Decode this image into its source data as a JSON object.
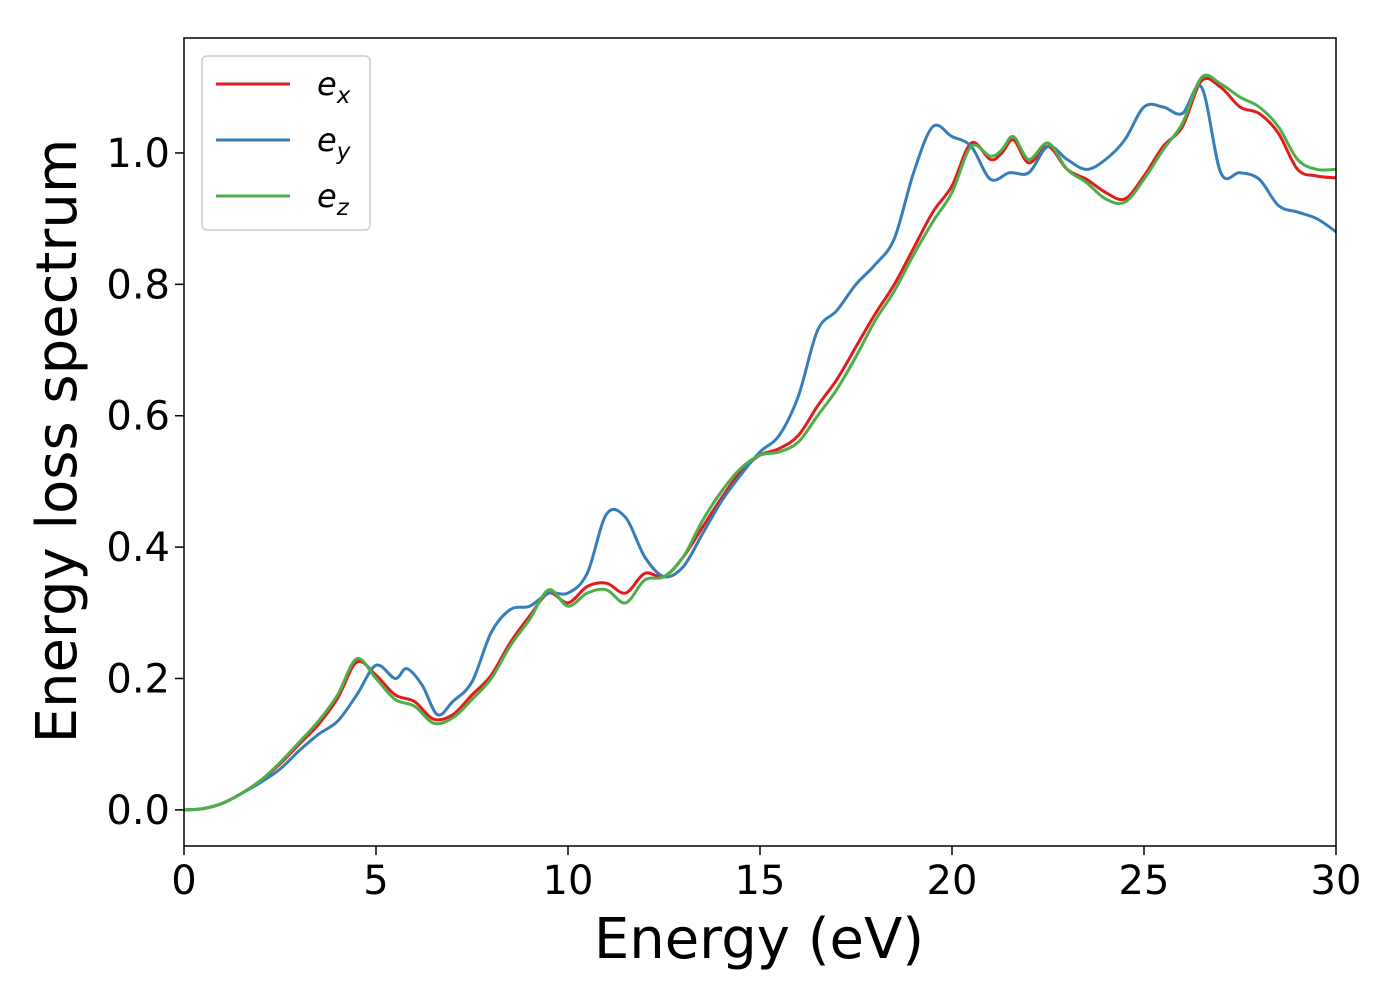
{
  "chart_data": {
    "type": "line",
    "xlabel": "Energy (eV)",
    "ylabel": "Energy loss spectrum",
    "xlim": [
      0,
      30
    ],
    "ylim": [
      -0.055,
      1.175
    ],
    "xticks": [
      0,
      5,
      10,
      15,
      20,
      25,
      30
    ],
    "yticks": [
      0.0,
      0.2,
      0.4,
      0.6,
      0.8,
      1.0
    ],
    "xtick_labels": [
      "0",
      "5",
      "10",
      "15",
      "20",
      "25",
      "30"
    ],
    "ytick_labels": [
      "0.0",
      "0.2",
      "0.4",
      "0.6",
      "0.8",
      "1.0"
    ],
    "grid": false,
    "legend_position": "top-left",
    "series": [
      {
        "name": "e",
        "subscript": "x",
        "color": "#e41a1c",
        "points": [
          [
            0,
            0.0
          ],
          [
            0.5,
            0.002
          ],
          [
            1.0,
            0.01
          ],
          [
            1.5,
            0.025
          ],
          [
            2.0,
            0.045
          ],
          [
            2.5,
            0.07
          ],
          [
            3.0,
            0.1
          ],
          [
            3.5,
            0.13
          ],
          [
            4.0,
            0.17
          ],
          [
            4.5,
            0.225
          ],
          [
            5.0,
            0.205
          ],
          [
            5.5,
            0.175
          ],
          [
            6.0,
            0.165
          ],
          [
            6.5,
            0.138
          ],
          [
            7.0,
            0.145
          ],
          [
            7.5,
            0.175
          ],
          [
            8.0,
            0.205
          ],
          [
            8.5,
            0.255
          ],
          [
            9.0,
            0.295
          ],
          [
            9.5,
            0.33
          ],
          [
            10.0,
            0.315
          ],
          [
            10.5,
            0.34
          ],
          [
            11.0,
            0.345
          ],
          [
            11.5,
            0.33
          ],
          [
            12.0,
            0.36
          ],
          [
            12.5,
            0.355
          ],
          [
            13.0,
            0.385
          ],
          [
            13.5,
            0.43
          ],
          [
            14.0,
            0.475
          ],
          [
            14.5,
            0.515
          ],
          [
            15.0,
            0.54
          ],
          [
            15.5,
            0.55
          ],
          [
            16.0,
            0.57
          ],
          [
            16.5,
            0.615
          ],
          [
            17.0,
            0.655
          ],
          [
            17.5,
            0.705
          ],
          [
            18.0,
            0.755
          ],
          [
            18.5,
            0.8
          ],
          [
            19.0,
            0.855
          ],
          [
            19.5,
            0.91
          ],
          [
            20.0,
            0.95
          ],
          [
            20.5,
            1.015
          ],
          [
            21.0,
            0.99
          ],
          [
            21.3,
            1.0
          ],
          [
            21.6,
            1.02
          ],
          [
            22.0,
            0.985
          ],
          [
            22.5,
            1.01
          ],
          [
            23.0,
            0.975
          ],
          [
            23.5,
            0.96
          ],
          [
            24.0,
            0.94
          ],
          [
            24.5,
            0.93
          ],
          [
            25.0,
            0.965
          ],
          [
            25.5,
            1.01
          ],
          [
            26.0,
            1.04
          ],
          [
            26.5,
            1.11
          ],
          [
            27.0,
            1.1
          ],
          [
            27.5,
            1.07
          ],
          [
            28.0,
            1.06
          ],
          [
            28.5,
            1.03
          ],
          [
            29.0,
            0.975
          ],
          [
            29.5,
            0.965
          ],
          [
            30.0,
            0.962
          ]
        ]
      },
      {
        "name": "e",
        "subscript": "y",
        "color": "#377eb8",
        "points": [
          [
            0,
            0.0
          ],
          [
            0.5,
            0.002
          ],
          [
            1.0,
            0.01
          ],
          [
            1.5,
            0.025
          ],
          [
            2.0,
            0.042
          ],
          [
            2.5,
            0.062
          ],
          [
            3.0,
            0.09
          ],
          [
            3.5,
            0.115
          ],
          [
            4.0,
            0.135
          ],
          [
            4.5,
            0.175
          ],
          [
            5.0,
            0.22
          ],
          [
            5.5,
            0.2
          ],
          [
            5.8,
            0.215
          ],
          [
            6.2,
            0.19
          ],
          [
            6.6,
            0.145
          ],
          [
            7.0,
            0.165
          ],
          [
            7.5,
            0.195
          ],
          [
            8.0,
            0.27
          ],
          [
            8.5,
            0.305
          ],
          [
            9.0,
            0.31
          ],
          [
            9.5,
            0.33
          ],
          [
            10.0,
            0.33
          ],
          [
            10.5,
            0.36
          ],
          [
            11.0,
            0.45
          ],
          [
            11.5,
            0.445
          ],
          [
            12.0,
            0.385
          ],
          [
            12.5,
            0.355
          ],
          [
            13.0,
            0.37
          ],
          [
            13.5,
            0.42
          ],
          [
            14.0,
            0.47
          ],
          [
            14.5,
            0.51
          ],
          [
            15.0,
            0.545
          ],
          [
            15.5,
            0.57
          ],
          [
            16.0,
            0.63
          ],
          [
            16.5,
            0.73
          ],
          [
            17.0,
            0.76
          ],
          [
            17.5,
            0.8
          ],
          [
            18.0,
            0.83
          ],
          [
            18.5,
            0.87
          ],
          [
            19.0,
            0.97
          ],
          [
            19.5,
            1.04
          ],
          [
            20.0,
            1.025
          ],
          [
            20.5,
            1.01
          ],
          [
            21.0,
            0.96
          ],
          [
            21.5,
            0.97
          ],
          [
            22.0,
            0.97
          ],
          [
            22.5,
            1.01
          ],
          [
            23.0,
            0.99
          ],
          [
            23.5,
            0.975
          ],
          [
            24.0,
            0.99
          ],
          [
            24.5,
            1.02
          ],
          [
            25.0,
            1.07
          ],
          [
            25.5,
            1.07
          ],
          [
            26.0,
            1.06
          ],
          [
            26.5,
            1.1
          ],
          [
            27.0,
            0.97
          ],
          [
            27.5,
            0.97
          ],
          [
            28.0,
            0.96
          ],
          [
            28.5,
            0.92
          ],
          [
            29.0,
            0.91
          ],
          [
            29.5,
            0.9
          ],
          [
            30.0,
            0.88
          ]
        ]
      },
      {
        "name": "e",
        "subscript": "z",
        "color": "#4daf4a",
        "points": [
          [
            0,
            0.0
          ],
          [
            0.5,
            0.002
          ],
          [
            1.0,
            0.01
          ],
          [
            1.5,
            0.025
          ],
          [
            2.0,
            0.045
          ],
          [
            2.5,
            0.072
          ],
          [
            3.0,
            0.103
          ],
          [
            3.5,
            0.135
          ],
          [
            4.0,
            0.175
          ],
          [
            4.5,
            0.23
          ],
          [
            5.0,
            0.2
          ],
          [
            5.5,
            0.168
          ],
          [
            6.0,
            0.158
          ],
          [
            6.5,
            0.132
          ],
          [
            7.0,
            0.14
          ],
          [
            7.5,
            0.168
          ],
          [
            8.0,
            0.2
          ],
          [
            8.5,
            0.25
          ],
          [
            9.0,
            0.29
          ],
          [
            9.5,
            0.335
          ],
          [
            10.0,
            0.31
          ],
          [
            10.5,
            0.33
          ],
          [
            11.0,
            0.335
          ],
          [
            11.5,
            0.315
          ],
          [
            12.0,
            0.35
          ],
          [
            12.5,
            0.355
          ],
          [
            13.0,
            0.385
          ],
          [
            13.5,
            0.44
          ],
          [
            14.0,
            0.485
          ],
          [
            14.5,
            0.52
          ],
          [
            15.0,
            0.54
          ],
          [
            15.5,
            0.545
          ],
          [
            16.0,
            0.56
          ],
          [
            16.5,
            0.6
          ],
          [
            17.0,
            0.64
          ],
          [
            17.5,
            0.69
          ],
          [
            18.0,
            0.745
          ],
          [
            18.5,
            0.79
          ],
          [
            19.0,
            0.845
          ],
          [
            19.5,
            0.895
          ],
          [
            20.0,
            0.94
          ],
          [
            20.5,
            1.01
          ],
          [
            21.0,
            0.995
          ],
          [
            21.3,
            1.005
          ],
          [
            21.6,
            1.025
          ],
          [
            22.0,
            0.99
          ],
          [
            22.5,
            1.015
          ],
          [
            23.0,
            0.975
          ],
          [
            23.5,
            0.955
          ],
          [
            24.0,
            0.93
          ],
          [
            24.5,
            0.925
          ],
          [
            25.0,
            0.96
          ],
          [
            25.5,
            1.005
          ],
          [
            26.0,
            1.045
          ],
          [
            26.5,
            1.115
          ],
          [
            27.0,
            1.105
          ],
          [
            27.5,
            1.085
          ],
          [
            28.0,
            1.07
          ],
          [
            28.5,
            1.04
          ],
          [
            29.0,
            0.99
          ],
          [
            29.5,
            0.975
          ],
          [
            30.0,
            0.975
          ]
        ]
      }
    ]
  }
}
